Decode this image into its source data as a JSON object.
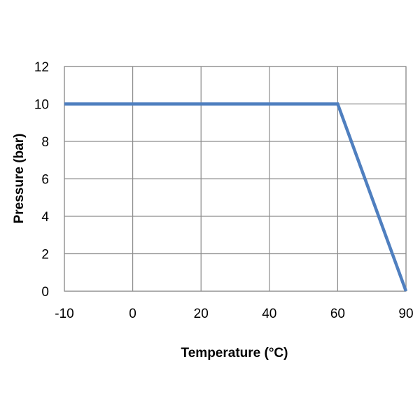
{
  "chart_data": {
    "type": "line",
    "title": "",
    "xlabel": "Temperature (°C)",
    "ylabel": "Pressure (bar)",
    "x_ticks": [
      -10,
      0,
      20,
      40,
      60,
      90
    ],
    "x_tick_labels": [
      "-10",
      "0",
      "20",
      "40",
      "60",
      "90"
    ],
    "y_ticks": [
      0,
      2,
      4,
      6,
      8,
      10,
      12
    ],
    "y_tick_labels": [
      "0",
      "2",
      "4",
      "6",
      "8",
      "10",
      "12"
    ],
    "ylim": [
      0,
      12
    ],
    "grid": true,
    "legend": "none",
    "series": [
      {
        "color": "#4f7fbf",
        "points": [
          {
            "x": -10,
            "y": 10
          },
          {
            "x": 60,
            "y": 10
          },
          {
            "x": 90,
            "y": 0
          }
        ]
      }
    ],
    "colors": {
      "grid": "#8c8c8c",
      "axis": "#8c8c8c",
      "text": "#000000"
    }
  }
}
